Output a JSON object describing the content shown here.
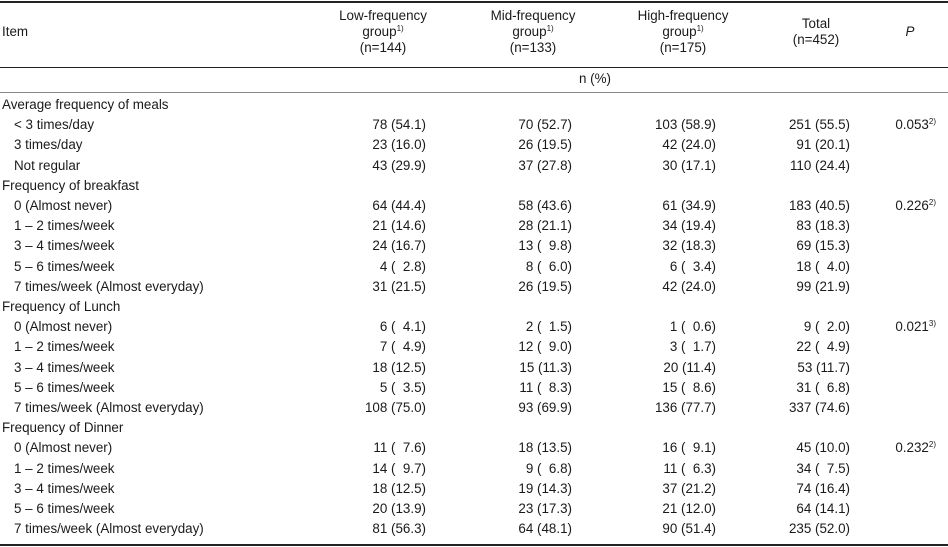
{
  "header": {
    "item": "Item",
    "groups": [
      {
        "l1": "Low-frequency",
        "l2": "group",
        "sup": "1)",
        "l3": "(n=144)"
      },
      {
        "l1": "Mid-frequency",
        "l2": "group",
        "sup": "1)",
        "l3": "(n=133)"
      },
      {
        "l1": "High-frequency",
        "l2": "group",
        "sup": "1)",
        "l3": "(n=175)"
      }
    ],
    "total": {
      "l1": "Total",
      "l2": "(n=452)"
    },
    "p": "P",
    "unit": "n (%)"
  },
  "sections": [
    {
      "title": "Average frequency of meals",
      "p": "0.053",
      "p_sup": "2)",
      "rows": [
        {
          "label": "< 3 times/day",
          "low": "78 (54.1)",
          "mid": "70 (52.7)",
          "high": "103 (58.9)",
          "total": "251 (55.5)"
        },
        {
          "label": "3 times/day",
          "low": "23 (16.0)",
          "mid": "26 (19.5)",
          "high": "42 (24.0)",
          "total": "91 (20.1)"
        },
        {
          "label": "Not regular",
          "low": "43 (29.9)",
          "mid": "37 (27.8)",
          "high": "30 (17.1)",
          "total": "110 (24.4)"
        }
      ]
    },
    {
      "title": "Frequency of breakfast",
      "p": "0.226",
      "p_sup": "2)",
      "rows": [
        {
          "label": "0 (Almost never)",
          "low": "64 (44.4)",
          "mid": "58 (43.6)",
          "high": "61 (34.9)",
          "total": "183 (40.5)"
        },
        {
          "label": "1 – 2 times/week",
          "low": "21 (14.6)",
          "mid": "28 (21.1)",
          "high": "34 (19.4)",
          "total": "83 (18.3)"
        },
        {
          "label": "3 – 4 times/week",
          "low": "24 (16.7)",
          "mid": "13 (  9.8)",
          "high": "32 (18.3)",
          "total": "69 (15.3)"
        },
        {
          "label": "5 – 6 times/week",
          "low": "4 (  2.8)",
          "mid": "8 (  6.0)",
          "high": "6 (  3.4)",
          "total": "18 (  4.0)"
        },
        {
          "label": "7 times/week (Almost everyday)",
          "low": "31 (21.5)",
          "mid": "26 (19.5)",
          "high": "42 (24.0)",
          "total": "99 (21.9)"
        }
      ]
    },
    {
      "title": "Frequency of Lunch",
      "p": "0.021",
      "p_sup": "3)",
      "rows": [
        {
          "label": "0 (Almost never)",
          "low": "6 (  4.1)",
          "mid": "2 (  1.5)",
          "high": "1 (  0.6)",
          "total": "9 (  2.0)"
        },
        {
          "label": "1 – 2 times/week",
          "low": "7 (  4.9)",
          "mid": "12 (  9.0)",
          "high": "3 (  1.7)",
          "total": "22 (  4.9)"
        },
        {
          "label": "3 – 4 times/week",
          "low": "18 (12.5)",
          "mid": "15 (11.3)",
          "high": "20 (11.4)",
          "total": "53 (11.7)"
        },
        {
          "label": "5 – 6 times/week",
          "low": "5 (  3.5)",
          "mid": "11 (  8.3)",
          "high": "15 (  8.6)",
          "total": "31 (  6.8)"
        },
        {
          "label": "7 times/week (Almost everyday)",
          "low": "108 (75.0)",
          "mid": "93 (69.9)",
          "high": "136 (77.7)",
          "total": "337 (74.6)"
        }
      ]
    },
    {
      "title": "Frequency of Dinner",
      "p": "0.232",
      "p_sup": "2)",
      "rows": [
        {
          "label": "0 (Almost never)",
          "low": "11 (  7.6)",
          "mid": "18 (13.5)",
          "high": "16 (  9.1)",
          "total": "45 (10.0)"
        },
        {
          "label": "1 – 2 times/week",
          "low": "14 (  9.7)",
          "mid": "9 (  6.8)",
          "high": "11 (  6.3)",
          "total": "34 (  7.5)"
        },
        {
          "label": "3 – 4 times/week",
          "low": "18 (12.5)",
          "mid": "19 (14.3)",
          "high": "37 (21.2)",
          "total": "74 (16.4)"
        },
        {
          "label": "5 – 6 times/week",
          "low": "20 (13.9)",
          "mid": "23 (17.3)",
          "high": "21 (12.0)",
          "total": "64 (14.1)"
        },
        {
          "label": "7 times/week (Almost everyday)",
          "low": "81 (56.3)",
          "mid": "64 (48.1)",
          "high": "90 (51.4)",
          "total": "235 (52.0)"
        }
      ]
    }
  ]
}
